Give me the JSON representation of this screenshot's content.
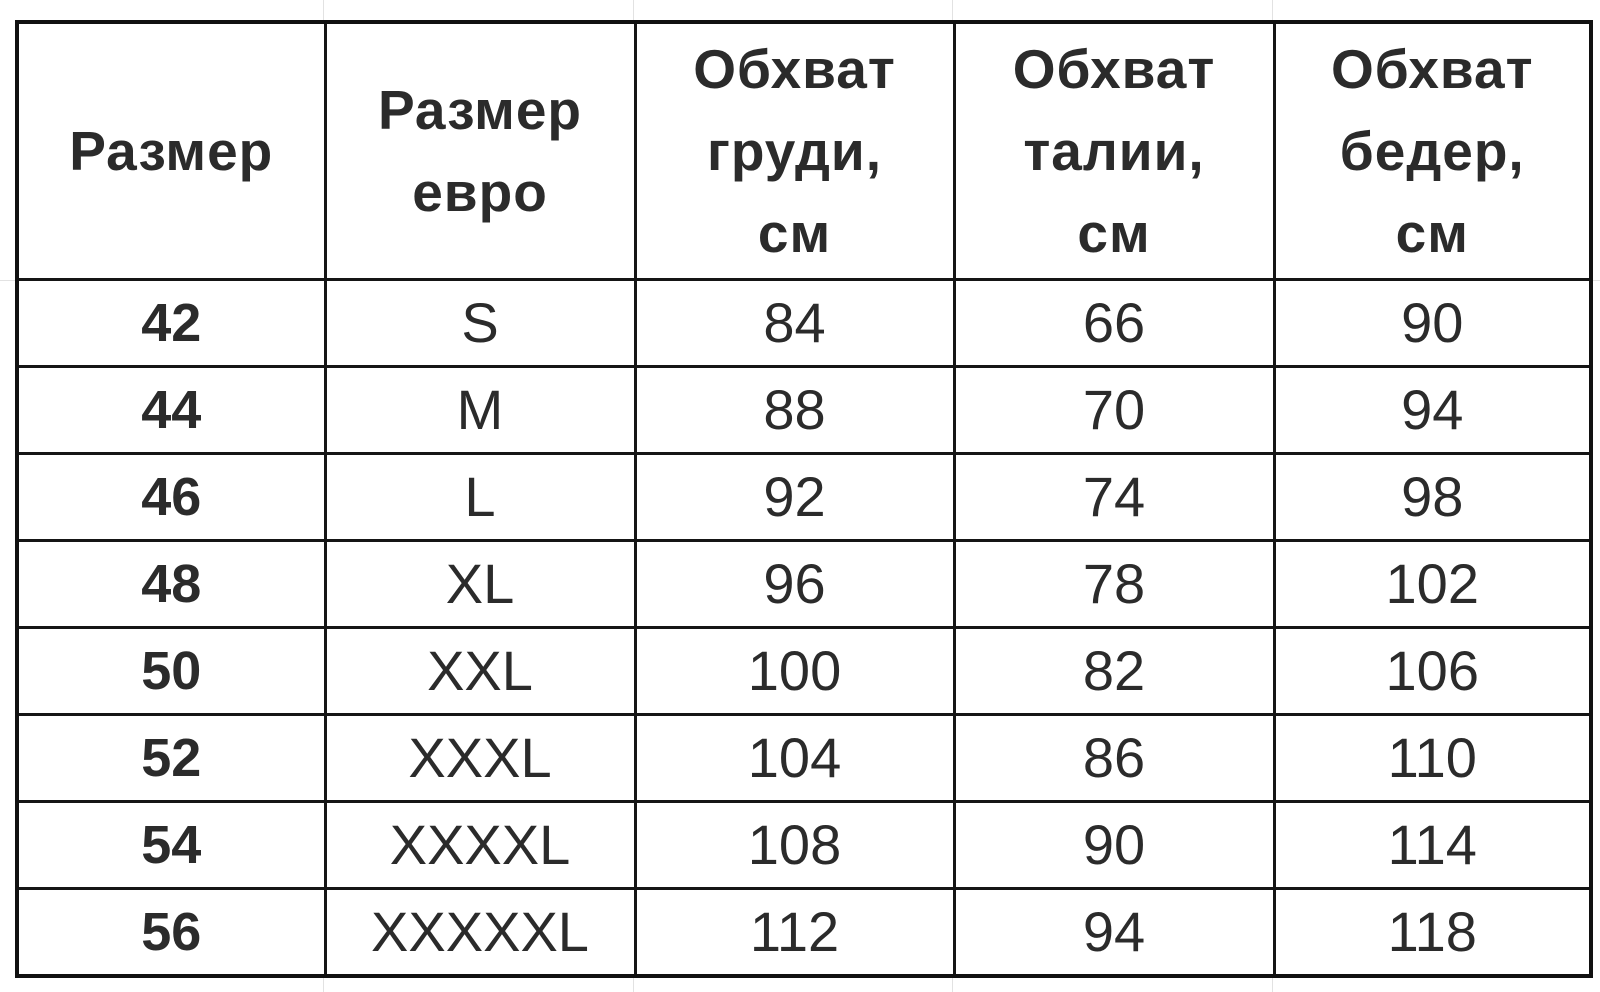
{
  "table": {
    "headers": [
      [
        "Размер"
      ],
      [
        "Размер",
        "евро"
      ],
      [
        "Обхват",
        "груди,",
        "см"
      ],
      [
        "Обхват",
        "талии,",
        "см"
      ],
      [
        "Обхват",
        "бедер,",
        "см"
      ]
    ],
    "rows": [
      [
        "42",
        "S",
        "84",
        "66",
        "90"
      ],
      [
        "44",
        "M",
        "88",
        "70",
        "94"
      ],
      [
        "46",
        "L",
        "92",
        "74",
        "98"
      ],
      [
        "48",
        "XL",
        "96",
        "78",
        "102"
      ],
      [
        "50",
        "XXL",
        "100",
        "82",
        "106"
      ],
      [
        "52",
        "XXXL",
        "104",
        "86",
        "110"
      ],
      [
        "54",
        "XXXXL",
        "108",
        "90",
        "114"
      ],
      [
        "56",
        "XXXXXL",
        "112",
        "94",
        "118"
      ]
    ]
  }
}
